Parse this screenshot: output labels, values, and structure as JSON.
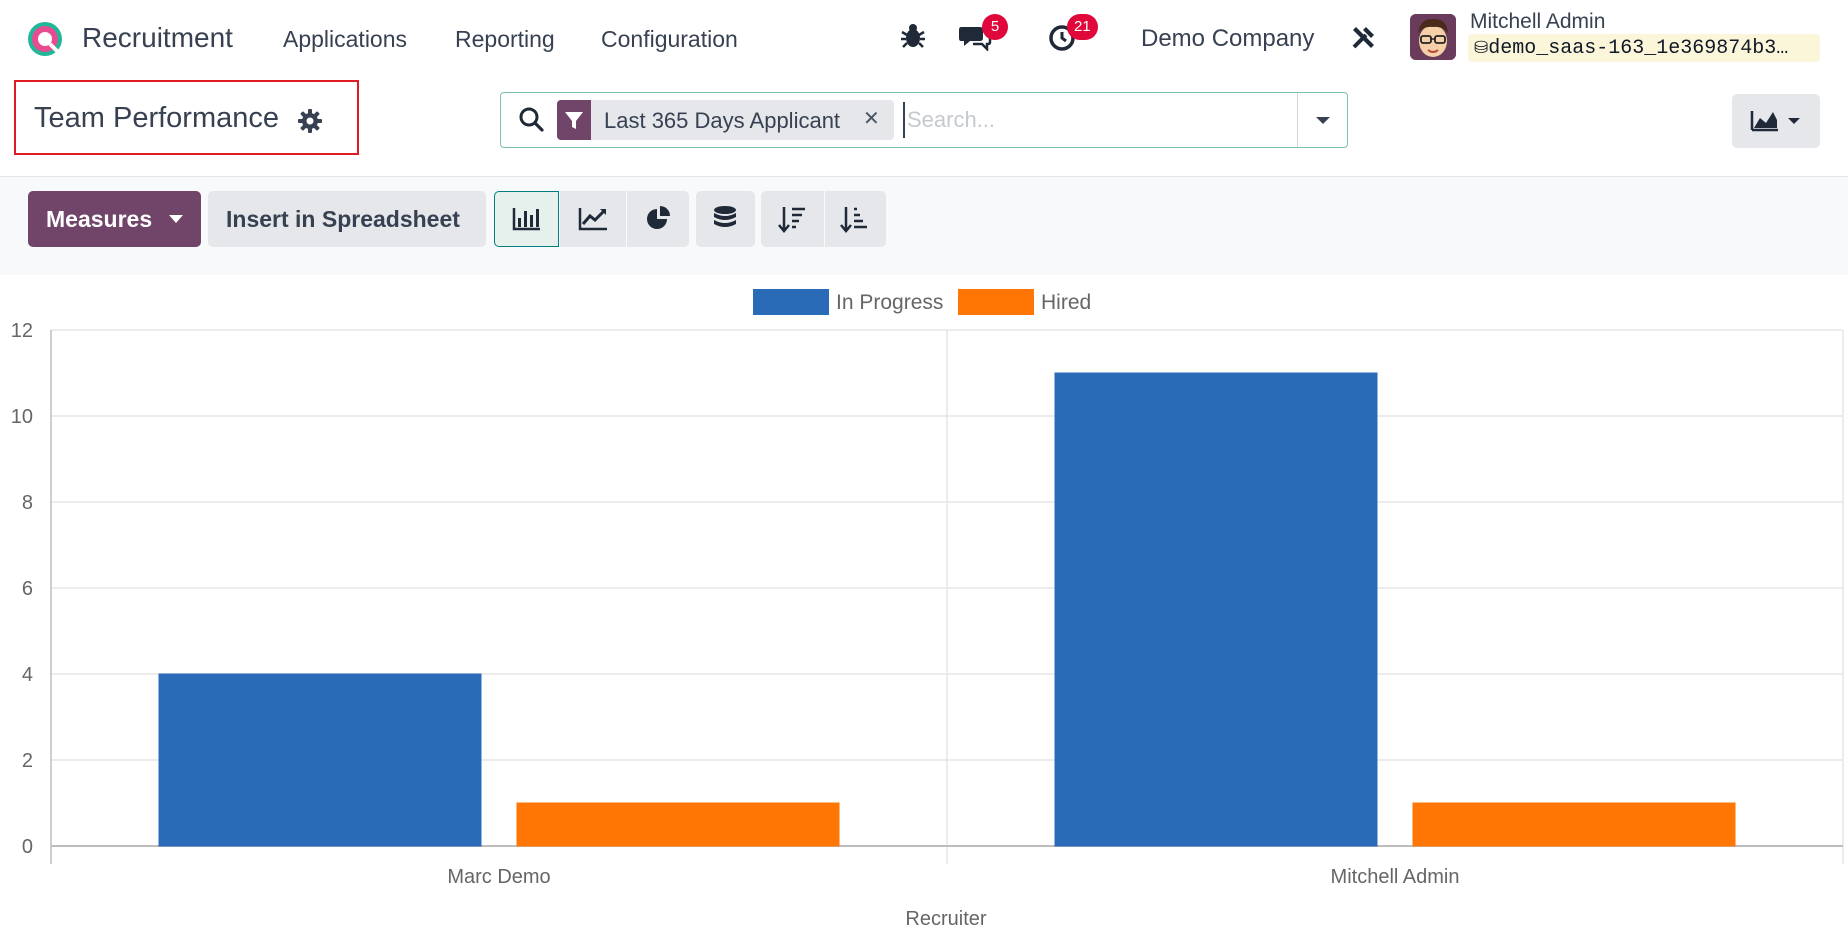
{
  "navbar": {
    "app_name": "Recruitment",
    "menu": [
      "Applications",
      "Reporting",
      "Configuration"
    ],
    "messages_count": "5",
    "activities_count": "21",
    "company": "Demo Company",
    "user_name": "Mitchell Admin",
    "database": "demo_saas-163_1e369874b3…"
  },
  "control_panel": {
    "title": "Team Performance",
    "search": {
      "facet_label": "Last 365 Days Applicant",
      "placeholder": "Search..."
    },
    "measures_label": "Measures",
    "insert_label": "Insert in Spreadsheet"
  },
  "colors": {
    "brand": "#71446a",
    "in_progress": "#2a6bb8",
    "hired": "#ff7605",
    "badge": "#e0073a"
  },
  "chart_data": {
    "type": "bar",
    "categories": [
      "Marc Demo",
      "Mitchell Admin"
    ],
    "series": [
      {
        "name": "In Progress",
        "values": [
          4,
          11
        ]
      },
      {
        "name": "Hired",
        "values": [
          1,
          1
        ]
      }
    ],
    "xlabel": "Recruiter",
    "ylabel": "",
    "ylim": [
      0,
      12
    ],
    "yticks": [
      0,
      2,
      4,
      6,
      8,
      10,
      12
    ],
    "grid": true,
    "legend": "top-center"
  }
}
